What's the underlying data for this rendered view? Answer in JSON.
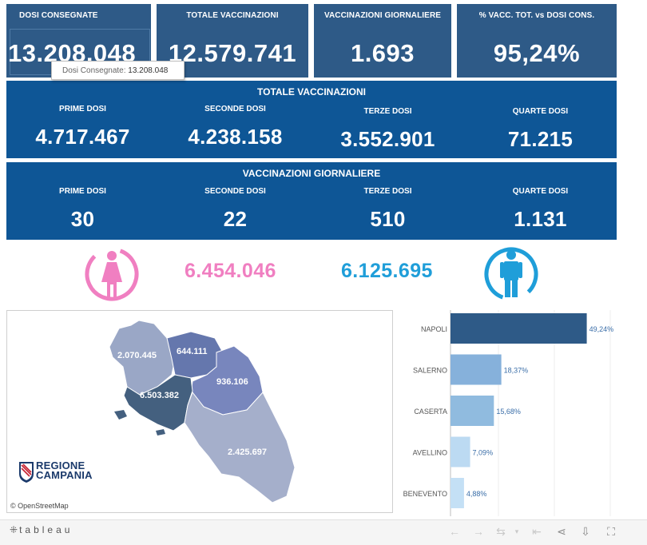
{
  "kpis": [
    {
      "label": "DOSI  CONSEGNATE",
      "value": "13.208.048"
    },
    {
      "label": "TOTALE VACCINAZIONI",
      "value": "12.579.741"
    },
    {
      "label": "VACCINAZIONI GIORNALIERE",
      "value": "1.693"
    },
    {
      "label": "% VACC. TOT. vs DOSI CONS.",
      "value": "95,24%"
    }
  ],
  "tooltip": {
    "label": "Dosi Consegnate:",
    "value": "13.208.048"
  },
  "totale": {
    "title": "TOTALE VACCINAZIONI",
    "cols": [
      {
        "label": "PRIME DOSI",
        "value": "4.717.467"
      },
      {
        "label": "SECONDE DOSI",
        "value": "4.238.158"
      },
      {
        "label": "TERZE DOSI",
        "value": "3.552.901"
      },
      {
        "label": "QUARTE DOSI",
        "value": "71.215"
      }
    ]
  },
  "giornaliere": {
    "title": "VACCINAZIONI GIORNALIERE",
    "cols": [
      {
        "label": "PRIME DOSI",
        "value": "30"
      },
      {
        "label": "SECONDE DOSI",
        "value": "22"
      },
      {
        "label": "TERZE DOSI",
        "value": "510"
      },
      {
        "label": "QUARTE DOSI",
        "value": "1.131"
      }
    ]
  },
  "gender": {
    "female_value": "6.454.046",
    "male_value": "6.125.695",
    "female_color": "#f07fc1",
    "male_color": "#1f9ed9",
    "female_icon": "female-person-icon",
    "male_icon": "male-person-icon"
  },
  "map": {
    "labels": {
      "caserta": "2.070.445",
      "benevento": "644.111",
      "avellino": "936.106",
      "napoli": "6.503.382",
      "salerno": "2.425.697"
    },
    "attribution": "© OpenStreetMap",
    "logo_line1": "REGIONE",
    "logo_line2": "CAMPANIA"
  },
  "chart_data": {
    "type": "bar",
    "orientation": "horizontal",
    "categories": [
      "NAPOLI",
      "SALERNO",
      "CASERTA",
      "AVELLINO",
      "BENEVENTO"
    ],
    "values": [
      49.24,
      18.37,
      15.68,
      7.09,
      4.88
    ],
    "value_labels": [
      "49,24%",
      "18,37%",
      "15,68%",
      "7,09%",
      "4,88%"
    ],
    "colors": [
      "#2e5a87",
      "#86b1db",
      "#90bbdf",
      "#bcdaf2",
      "#c4e0f5"
    ],
    "xlim": [
      0,
      56
    ]
  },
  "footer": {
    "brand": "tableau",
    "brand_icon": "tableau-logo-icon",
    "controls": [
      "undo-icon",
      "redo-icon",
      "revert-icon",
      "revert-dropdown-icon",
      "reset-icon",
      "share-icon",
      "download-icon",
      "fullscreen-icon"
    ]
  }
}
